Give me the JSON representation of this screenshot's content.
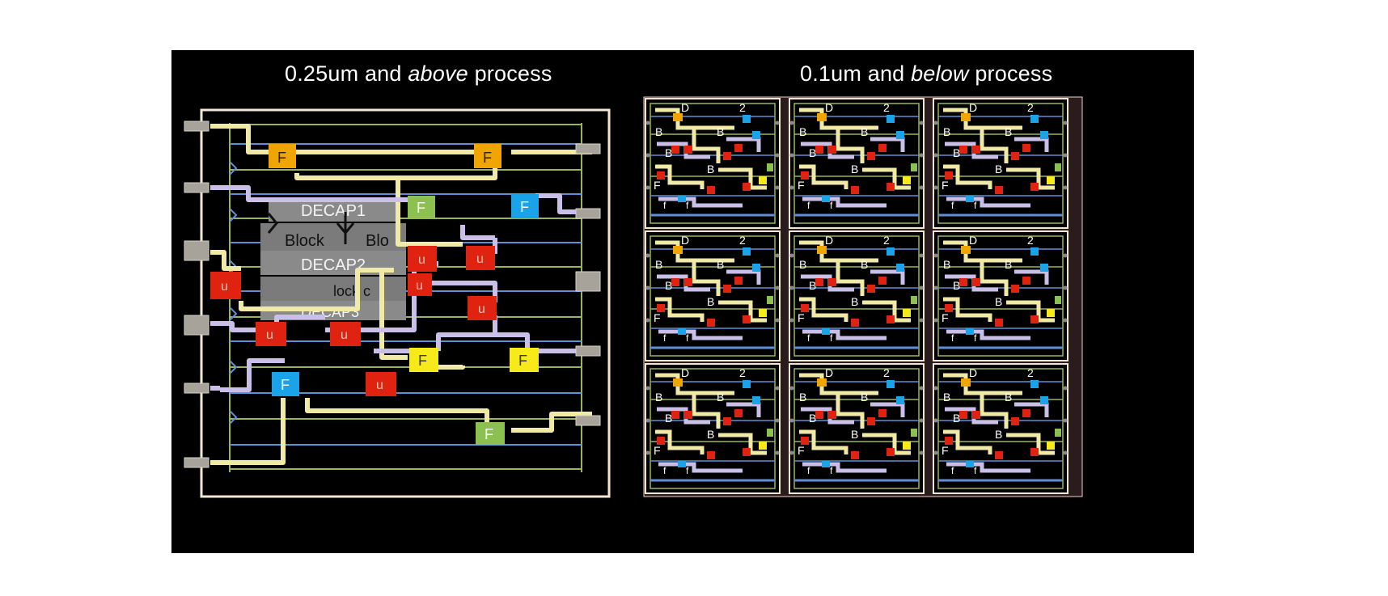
{
  "titles": {
    "left_main": "0.25um and ",
    "left_em": "above",
    "left_tail": " process",
    "right_main": "0.1um and ",
    "right_em": "below",
    "right_tail": " process"
  },
  "left_layout": {
    "blocks": [
      "DECAP1",
      "Block",
      "Blo",
      "DECAP2",
      "lock c",
      "DECAP3"
    ],
    "cells": {
      "flop": "F",
      "gate": "u"
    }
  },
  "right_layout": {
    "tile_rows": 3,
    "tile_cols": 3,
    "tile_labels": [
      "D",
      "2",
      "B",
      "F",
      "f"
    ]
  },
  "colors": {
    "background": "#000000",
    "outline": "#f3e6d2",
    "yellow_wire": "#f1e9a6",
    "lavender_wire": "#c9bfe8",
    "blue_track": "#5f8fd6",
    "green_track": "#9ab55a",
    "flop_orange": "#f0a500",
    "flop_green": "#8cc152",
    "flop_blue": "#1aa3e8",
    "flop_yellow": "#f7ea1a",
    "gate_red": "#e02310",
    "block_gray": "#888888"
  }
}
